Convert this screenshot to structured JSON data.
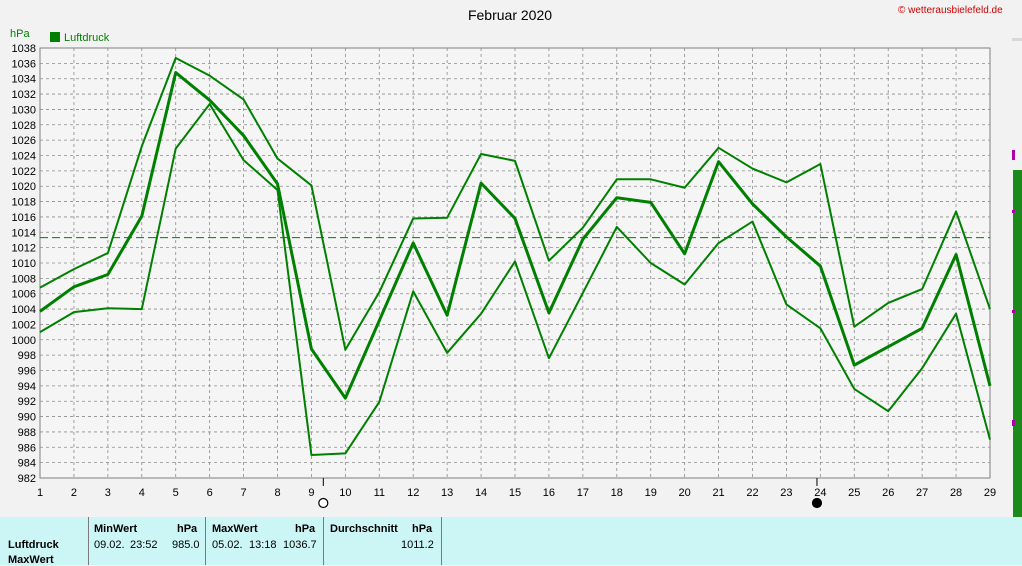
{
  "credit": "© wetterausbielefeld.de",
  "chart_data": {
    "type": "line",
    "title": "Februar 2020",
    "ylabel": "hPa",
    "xlabel": "",
    "legend": {
      "label": "Luftdruck",
      "color": "#008000",
      "placement": "top-left"
    },
    "ylim": [
      982,
      1038
    ],
    "ytick_step": 2,
    "x": [
      1,
      2,
      3,
      4,
      5,
      6,
      7,
      8,
      9,
      10,
      11,
      12,
      13,
      14,
      15,
      16,
      17,
      18,
      19,
      20,
      21,
      22,
      23,
      24,
      25,
      26,
      27,
      28,
      29
    ],
    "grid": true,
    "average_line": 1013.3,
    "series": [
      {
        "role": "max",
        "values": [
          1006.8,
          1009.2,
          1011.3,
          1025.2,
          1036.7,
          1034.4,
          1031.3,
          1023.6,
          1020.1,
          998.7,
          1006.2,
          1015.8,
          1015.9,
          1024.2,
          1023.3,
          1010.3,
          1014.6,
          1020.9,
          1020.9,
          1019.8,
          1025.0,
          1022.3,
          1020.5,
          1022.9,
          1001.7,
          1004.8,
          1006.6,
          1016.7,
          1004.0
        ]
      },
      {
        "role": "mean",
        "values": [
          1003.7,
          1006.9,
          1008.5,
          1016.1,
          1034.8,
          1031.2,
          1026.6,
          1020.3,
          998.8,
          992.4,
          1002.5,
          1012.6,
          1003.2,
          1020.4,
          1015.8,
          1003.5,
          1013.1,
          1018.5,
          1017.9,
          1011.2,
          1023.2,
          1017.7,
          1013.4,
          1009.6,
          996.7,
          999.1,
          1001.5,
          1011.1,
          994.0
        ]
      },
      {
        "role": "min",
        "values": [
          1001.0,
          1003.6,
          1004.1,
          1004.0,
          1024.9,
          1030.7,
          1023.4,
          1019.5,
          985.0,
          985.2,
          991.9,
          1006.3,
          998.3,
          1003.4,
          1010.2,
          997.6,
          1006.1,
          1014.7,
          1010.0,
          1007.2,
          1012.6,
          1015.4,
          1004.6,
          1001.5,
          993.6,
          990.7,
          996.3,
          1003.4,
          987.0
        ]
      }
    ],
    "moon_phases": [
      {
        "x": 9.35,
        "phase": "full-moon-icon"
      },
      {
        "x": 23.9,
        "phase": "new-moon-icon"
      }
    ]
  },
  "stats": {
    "row_labels": [
      "Luftdruck",
      "MaxWert"
    ],
    "min": {
      "header": "MinWert",
      "unit": "hPa",
      "date": "09.02.",
      "time": "23:52",
      "value": "985.0"
    },
    "max": {
      "header": "MaxWert",
      "unit": "hPa",
      "date": "05.02.",
      "time": "13:18",
      "value": "1036.7"
    },
    "avg": {
      "header": "Durchschnitt",
      "unit": "hPa",
      "value": "1011.2"
    }
  }
}
